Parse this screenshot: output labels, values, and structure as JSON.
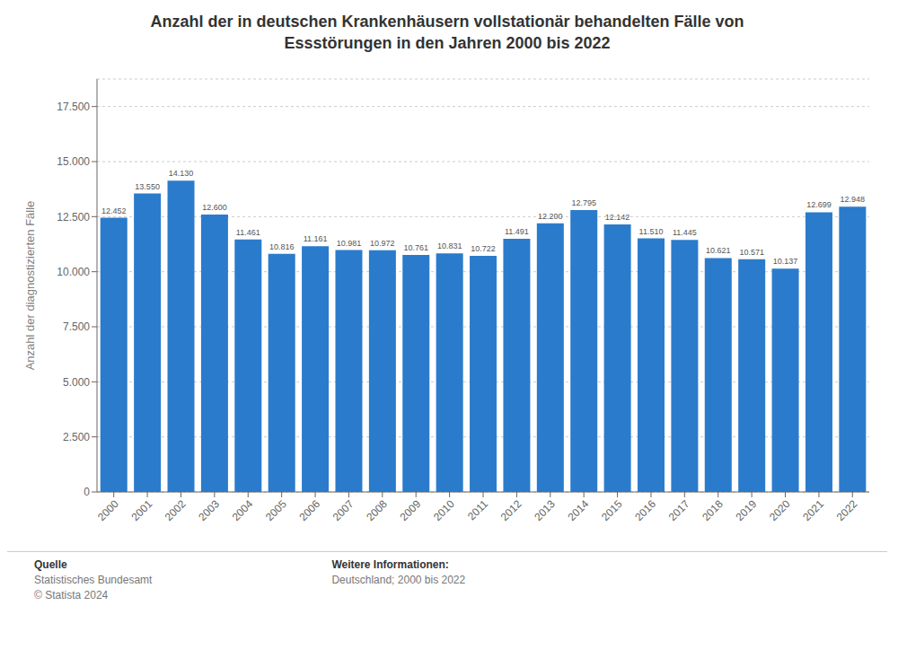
{
  "chart_data": {
    "type": "bar",
    "title": "Anzahl der in deutschen Krankenhäusern vollstationär behandelten Fälle von\nEssstörungen in den Jahren 2000 bis 2022",
    "y_label": "Anzahl der diagnostizierten Fälle",
    "categories": [
      "2000",
      "2001",
      "2002",
      "2003",
      "2004",
      "2005",
      "2006",
      "2007",
      "2008",
      "2009",
      "2010",
      "2011",
      "2012",
      "2013",
      "2014",
      "2015",
      "2016",
      "2017",
      "2018",
      "2019",
      "2020",
      "2021",
      "2022"
    ],
    "values": [
      12452,
      13550,
      14130,
      12600,
      11461,
      10816,
      11161,
      10981,
      10972,
      10761,
      10831,
      10722,
      11491,
      12200,
      12795,
      12142,
      11510,
      11445,
      10621,
      10571,
      10137,
      12699,
      12948
    ],
    "value_labels": [
      "12.452",
      "13.550",
      "14.130",
      "12.600",
      "11.461",
      "10.816",
      "11.161",
      "10.981",
      "10.972",
      "10.761",
      "10.831",
      "10.722",
      "11.491",
      "12.200",
      "12.795",
      "12.142",
      "11.510",
      "11.445",
      "10.621",
      "10.571",
      "10.137",
      "12.699",
      "12.948"
    ],
    "data_labels": true,
    "color": "#2b7bcc",
    "ylim": [
      0,
      18750
    ],
    "yticks": [
      0,
      {
        "value": 2500,
        "label": "2.500"
      },
      {
        "value": 5000,
        "label": "5.000"
      },
      {
        "value": 7500,
        "label": "7.500"
      },
      {
        "value": 10000,
        "label": "10.000"
      },
      {
        "value": 12500,
        "label": "12.500"
      },
      {
        "value": 15000,
        "label": "15.000"
      },
      {
        "value": 17500,
        "label": "17.500"
      }
    ],
    "grid": true,
    "annotations": [
      [
        "Quelle",
        "Statistisches Bundesamt",
        "© Statista 2024"
      ],
      [
        "Weitere Informationen:",
        "Deutschland; 2000 bis 2022"
      ]
    ]
  }
}
